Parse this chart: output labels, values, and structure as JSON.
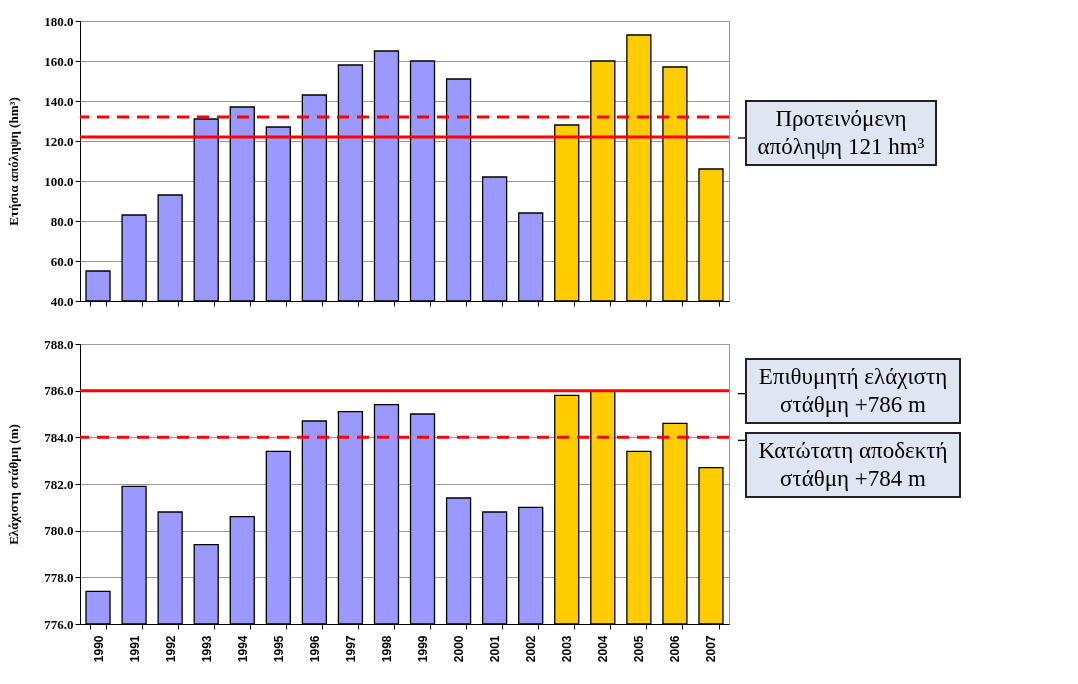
{
  "chart_data": [
    {
      "type": "bar",
      "ylabel": "Ετήσια απόληψη (hm³)",
      "categories": [
        "1990",
        "1991",
        "1992",
        "1993",
        "1994",
        "1995",
        "1996",
        "1997",
        "1998",
        "1999",
        "2000",
        "2001",
        "2002",
        "2003",
        "2004",
        "2005",
        "2006",
        "2007"
      ],
      "values": [
        55,
        83,
        93,
        131,
        137,
        127,
        143,
        158,
        165,
        160,
        151,
        102,
        84,
        128,
        160,
        173,
        157,
        106
      ],
      "colors": [
        "#9999ff",
        "#9999ff",
        "#9999ff",
        "#9999ff",
        "#9999ff",
        "#9999ff",
        "#9999ff",
        "#9999ff",
        "#9999ff",
        "#9999ff",
        "#9999ff",
        "#9999ff",
        "#9999ff",
        "#ffcc00",
        "#ffcc00",
        "#ffcc00",
        "#ffcc00",
        "#ffcc00"
      ],
      "ylim": [
        40,
        180
      ],
      "yticks": [
        {
          "value": 40,
          "label": "40.0"
        },
        {
          "value": 60,
          "label": "60.0"
        },
        {
          "value": 80,
          "label": "80.0"
        },
        {
          "value": 100,
          "label": "100.0"
        },
        {
          "value": 120,
          "label": "120.0"
        },
        {
          "value": 140,
          "label": "140.0"
        },
        {
          "value": 160,
          "label": "160.0"
        },
        {
          "value": 180,
          "label": "180.0"
        }
      ],
      "grid": "y",
      "tick_labels": "y",
      "ref_lines": [
        {
          "axis": "y",
          "value": 132,
          "color": "#ff0000",
          "line_style": "dashed"
        },
        {
          "axis": "y",
          "value": 122,
          "color": "#ff0000",
          "line_style": "solid",
          "label": "Προτεινόμενη απόληψη 121 hm³"
        }
      ]
    },
    {
      "type": "bar",
      "ylabel": "Ελάχιστη στάθμη (m)",
      "categories": [
        "1990",
        "1991",
        "1992",
        "1993",
        "1994",
        "1995",
        "1996",
        "1997",
        "1998",
        "1999",
        "2000",
        "2001",
        "2002",
        "2003",
        "2004",
        "2005",
        "2006",
        "2007"
      ],
      "values": [
        777.4,
        781.9,
        780.8,
        779.4,
        780.6,
        783.4,
        784.7,
        785.1,
        785.4,
        785.0,
        781.4,
        780.8,
        781.0,
        785.8,
        786.0,
        783.4,
        784.6,
        782.7
      ],
      "colors": [
        "#9999ff",
        "#9999ff",
        "#9999ff",
        "#9999ff",
        "#9999ff",
        "#9999ff",
        "#9999ff",
        "#9999ff",
        "#9999ff",
        "#9999ff",
        "#9999ff",
        "#9999ff",
        "#9999ff",
        "#ffcc00",
        "#ffcc00",
        "#ffcc00",
        "#ffcc00",
        "#ffcc00"
      ],
      "ylim": [
        776,
        788
      ],
      "yticks": [
        {
          "value": 776,
          "label": "776.0"
        },
        {
          "value": 778,
          "label": "778.0"
        },
        {
          "value": 780,
          "label": "780.0"
        },
        {
          "value": 782,
          "label": "782.0"
        },
        {
          "value": 784,
          "label": "784.0"
        },
        {
          "value": 786,
          "label": "786.0"
        },
        {
          "value": 788,
          "label": "788.0"
        }
      ],
      "grid": "y",
      "ref_lines": [
        {
          "axis": "y",
          "value": 786,
          "color": "#ff0000",
          "line_style": "solid",
          "label": "Επιθυμητή ελάχιστη στάθμη +786 m"
        },
        {
          "axis": "y",
          "value": 784,
          "color": "#ff0000",
          "line_style": "dashed",
          "label": "Κατώτατη αποδεκτή στάθμη +784 m"
        }
      ]
    }
  ]
}
